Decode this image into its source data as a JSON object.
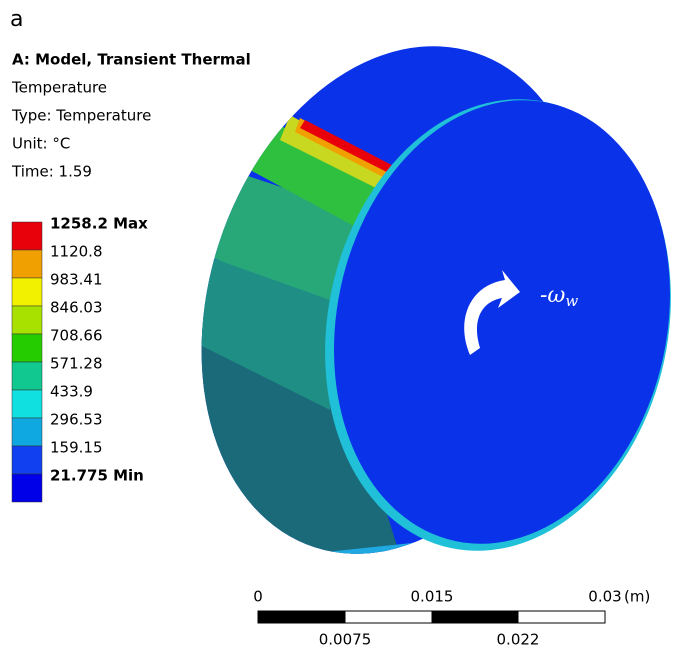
{
  "panel_label": "a",
  "header": {
    "title": "A: Model, Transient Thermal",
    "lines": [
      "Temperature",
      "Type: Temperature",
      "Unit: °C",
      "Time: 1.59"
    ]
  },
  "legend": {
    "labels": [
      "1258.2 Max",
      "1120.8",
      "983.41",
      "846.03",
      "708.66",
      "571.28",
      "433.9",
      "296.53",
      "159.15",
      "21.775 Min"
    ],
    "colors": [
      "#e8000b",
      "#f0a000",
      "#f2f200",
      "#a8e000",
      "#24cc00",
      "#10c890",
      "#10e0e0",
      "#10a8e0",
      "#1040f0",
      "#0000e8"
    ]
  },
  "scale_bar": {
    "top_labels": [
      "0",
      "0.015",
      "0.03"
    ],
    "unit": "(m)",
    "bottom_labels": [
      "0.0075",
      "0.022"
    ]
  },
  "annotation": {
    "text": "-ω",
    "subscript": "w"
  }
}
